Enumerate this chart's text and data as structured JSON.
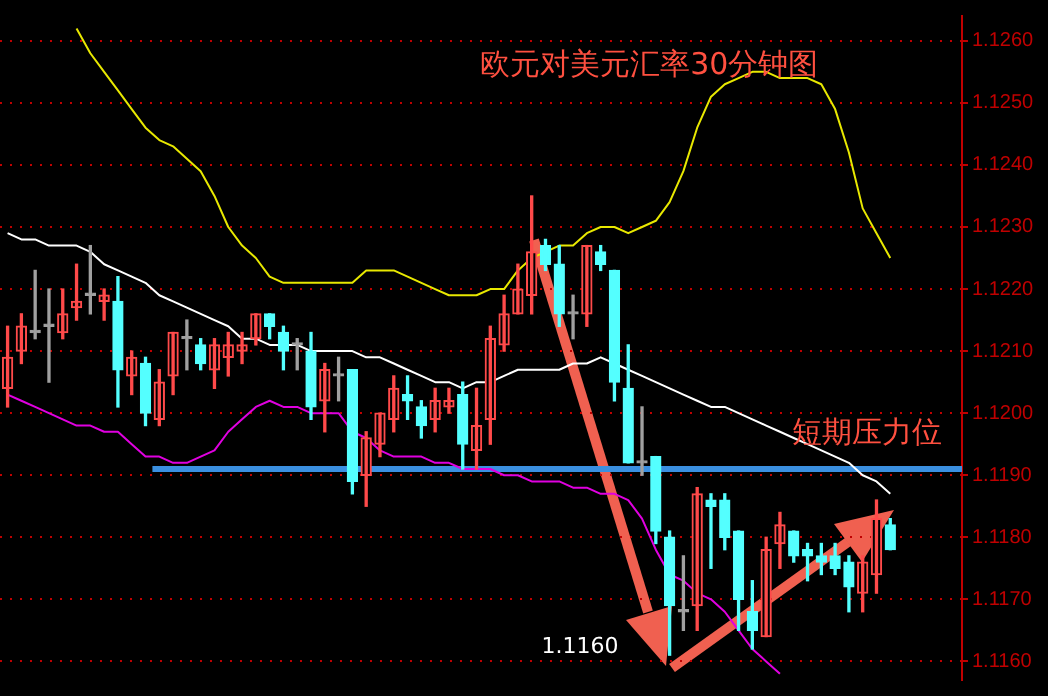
{
  "chart_data": {
    "type": "candlestick",
    "title": "欧元对美元汇率30分钟图",
    "categories": [
      null,
      null,
      null,
      null,
      null,
      null,
      null,
      null,
      null,
      null,
      null,
      null,
      null,
      null,
      null,
      null,
      null,
      null,
      null,
      null,
      null,
      null,
      null,
      null,
      null,
      null,
      null,
      null,
      null,
      null,
      null,
      null,
      null,
      null,
      null,
      null,
      null,
      null,
      null,
      null,
      null,
      null,
      null,
      null,
      null,
      null,
      null,
      null,
      null,
      null,
      null,
      null,
      null,
      null,
      null,
      null,
      null,
      null,
      null,
      null,
      null,
      null,
      null,
      null,
      null
    ],
    "ohlc": [
      [
        1.1204,
        1.1214,
        1.1201,
        1.1209
      ],
      [
        1.121,
        1.1216,
        1.1208,
        1.1214
      ],
      [
        1.1213,
        1.1223,
        1.1212,
        1.1213
      ],
      [
        1.1214,
        1.122,
        1.1205,
        1.1214
      ],
      [
        1.1213,
        1.122,
        1.1212,
        1.1216
      ],
      [
        1.1217,
        1.1224,
        1.1215,
        1.1218
      ],
      [
        1.1219,
        1.1227,
        1.1216,
        1.1219
      ],
      [
        1.1218,
        1.122,
        1.1215,
        1.1219
      ],
      [
        1.1218,
        1.1222,
        1.1201,
        1.1207
      ],
      [
        1.1206,
        1.121,
        1.1203,
        1.1209
      ],
      [
        1.1208,
        1.1209,
        1.1198,
        1.12
      ],
      [
        1.1199,
        1.1207,
        1.1198,
        1.1205
      ],
      [
        1.1206,
        1.1213,
        1.1203,
        1.1213
      ],
      [
        1.1212,
        1.1215,
        1.1207,
        1.1212
      ],
      [
        1.1211,
        1.1212,
        1.1207,
        1.1208
      ],
      [
        1.1207,
        1.1212,
        1.1204,
        1.1211
      ],
      [
        1.1209,
        1.1213,
        1.1206,
        1.1211
      ],
      [
        1.121,
        1.1213,
        1.1208,
        1.1211
      ],
      [
        1.1212,
        1.1216,
        1.1211,
        1.1216
      ],
      [
        1.1216,
        1.1216,
        1.1212,
        1.1214
      ],
      [
        1.1213,
        1.1214,
        1.1207,
        1.121
      ],
      [
        1.1211,
        1.1212,
        1.1207,
        1.1211
      ],
      [
        1.121,
        1.1213,
        1.1199,
        1.1201
      ],
      [
        1.1202,
        1.1208,
        1.1197,
        1.1207
      ],
      [
        1.1206,
        1.1209,
        1.1202,
        1.1206
      ],
      [
        1.1207,
        1.1207,
        1.1187,
        1.1189
      ],
      [
        1.119,
        1.1197,
        1.1185,
        1.1196
      ],
      [
        1.1195,
        1.12,
        1.1193,
        1.12
      ],
      [
        1.1199,
        1.1206,
        1.1197,
        1.1204
      ],
      [
        1.1203,
        1.1206,
        1.1199,
        1.1202
      ],
      [
        1.1201,
        1.1202,
        1.1196,
        1.1198
      ],
      [
        1.1199,
        1.1204,
        1.1197,
        1.1202
      ],
      [
        1.1201,
        1.1204,
        1.12,
        1.1202
      ],
      [
        1.1203,
        1.1205,
        1.1191,
        1.1195
      ],
      [
        1.1194,
        1.1204,
        1.1191,
        1.1198
      ],
      [
        1.1199,
        1.1214,
        1.1195,
        1.1212
      ],
      [
        1.1211,
        1.1219,
        1.121,
        1.1216
      ],
      [
        1.1216,
        1.1224,
        1.1216,
        1.122
      ],
      [
        1.1219,
        1.1235,
        1.1216,
        1.1226
      ],
      [
        1.1227,
        1.1228,
        1.1223,
        1.1224
      ],
      [
        1.1224,
        1.1227,
        1.1214,
        1.1216
      ],
      [
        1.1216,
        1.1219,
        1.1212,
        1.1216
      ],
      [
        1.1216,
        1.1227,
        1.1214,
        1.1227
      ],
      [
        1.1226,
        1.1227,
        1.1223,
        1.1224
      ],
      [
        1.1223,
        1.1223,
        1.1202,
        1.1205
      ],
      [
        1.1204,
        1.1211,
        1.1192,
        1.1192
      ],
      [
        1.1192,
        1.1201,
        1.119,
        1.1192
      ],
      [
        1.1193,
        1.1193,
        1.1179,
        1.1181
      ],
      [
        1.118,
        1.1181,
        1.1161,
        1.1169
      ],
      [
        1.1168,
        1.1177,
        1.1165,
        1.1168
      ],
      [
        1.1169,
        1.1188,
        1.1165,
        1.1187
      ],
      [
        1.1186,
        1.1187,
        1.1175,
        1.1185
      ],
      [
        1.1186,
        1.1187,
        1.1178,
        1.118
      ],
      [
        1.1181,
        1.1181,
        1.1165,
        1.117
      ],
      [
        1.1168,
        1.1173,
        1.1162,
        1.1165
      ],
      [
        1.1164,
        1.118,
        1.1164,
        1.1178
      ],
      [
        1.1179,
        1.1184,
        1.1175,
        1.1182
      ],
      [
        1.1181,
        1.1181,
        1.1176,
        1.1177
      ],
      [
        1.1178,
        1.1179,
        1.1173,
        1.1177
      ],
      [
        1.1177,
        1.1179,
        1.1174,
        1.1176
      ],
      [
        1.1177,
        1.1179,
        1.1174,
        1.1175
      ],
      [
        1.1176,
        1.1177,
        1.1168,
        1.1172
      ],
      [
        1.1171,
        1.1177,
        1.1168,
        1.1176
      ],
      [
        1.1174,
        1.1186,
        1.1171,
        1.1183
      ],
      [
        1.1182,
        1.1183,
        1.1178,
        1.1178
      ]
    ],
    "series": [
      {
        "type": "line",
        "color": "#e8e800",
        "values": [
          null,
          null,
          null,
          null,
          null,
          1.1262,
          1.1258,
          1.1255,
          1.1252,
          1.1249,
          1.1246,
          1.1244,
          1.1243,
          1.1241,
          1.1239,
          1.1235,
          1.123,
          1.1227,
          1.1225,
          1.1222,
          1.1221,
          1.1221,
          1.1221,
          1.1221,
          1.1221,
          1.1221,
          1.1223,
          1.1223,
          1.1223,
          1.1222,
          1.1221,
          1.122,
          1.1219,
          1.1219,
          1.1219,
          1.122,
          1.122,
          1.1223,
          1.1225,
          1.1226,
          1.1227,
          1.1227,
          1.1229,
          1.123,
          1.123,
          1.1229,
          1.123,
          1.1231,
          1.1234,
          1.1239,
          1.1246,
          1.1251,
          1.1253,
          1.1254,
          1.1255,
          1.1255,
          1.1254,
          1.1254,
          1.1254,
          1.1253,
          1.1249,
          1.1242,
          1.1233,
          1.1229,
          1.1225
        ]
      },
      {
        "type": "line",
        "color": "#ffffff",
        "values": [
          1.1229,
          1.1228,
          1.1228,
          1.1227,
          1.1227,
          1.1227,
          1.1226,
          1.1224,
          1.1223,
          1.1222,
          1.1221,
          1.1219,
          1.1218,
          1.1217,
          1.1216,
          1.1215,
          1.1214,
          1.1212,
          1.1212,
          1.1211,
          1.1211,
          1.1211,
          1.121,
          1.121,
          1.121,
          1.121,
          1.1209,
          1.1209,
          1.1208,
          1.1207,
          1.1206,
          1.1205,
          1.1205,
          1.1204,
          1.1205,
          1.1205,
          1.1206,
          1.1207,
          1.1207,
          1.1207,
          1.1207,
          1.1208,
          1.1208,
          1.1209,
          1.1208,
          1.1207,
          1.1206,
          1.1205,
          1.1204,
          1.1203,
          1.1202,
          1.1201,
          1.1201,
          1.12,
          1.1199,
          1.1198,
          1.1197,
          1.1196,
          1.1195,
          1.1194,
          1.1193,
          1.1192,
          1.119,
          1.1189,
          1.1187
        ]
      },
      {
        "type": "line",
        "color": "#e000e0",
        "values": [
          1.1203,
          1.1202,
          1.1201,
          1.12,
          1.1199,
          1.1198,
          1.1198,
          1.1197,
          1.1197,
          1.1195,
          1.1193,
          1.1193,
          1.1192,
          1.1192,
          1.1193,
          1.1194,
          1.1197,
          1.1199,
          1.1201,
          1.1202,
          1.1201,
          1.1201,
          1.12,
          1.12,
          1.12,
          1.1197,
          1.1196,
          1.1194,
          1.1193,
          1.1193,
          1.1193,
          1.1192,
          1.1192,
          1.1191,
          1.1191,
          1.1191,
          1.119,
          1.119,
          1.1189,
          1.1189,
          1.1189,
          1.1188,
          1.1188,
          1.1187,
          1.1187,
          1.1186,
          1.1183,
          1.1178,
          1.1174,
          1.1173,
          1.1171,
          1.117,
          1.1168,
          1.1165,
          1.1162,
          1.116,
          1.1158,
          null,
          null,
          null,
          null,
          null,
          null,
          null,
          null
        ]
      }
    ],
    "ylim": [
      1.1157,
      1.1264
    ],
    "yticks": [
      {
        "value": 1.116,
        "label": "1.1160"
      },
      {
        "value": 1.117,
        "label": "1.1170"
      },
      {
        "value": 1.118,
        "label": "1.1180"
      },
      {
        "value": 1.119,
        "label": "1.1190"
      },
      {
        "value": 1.12,
        "label": "1.1200"
      },
      {
        "value": 1.121,
        "label": "1.1210"
      },
      {
        "value": 1.122,
        "label": "1.1220"
      },
      {
        "value": 1.123,
        "label": "1.1230"
      },
      {
        "value": 1.124,
        "label": "1.1240"
      },
      {
        "value": 1.125,
        "label": "1.1250"
      },
      {
        "value": 1.126,
        "label": "1.1260"
      }
    ],
    "grid": "y",
    "legend": false,
    "marker": "none",
    "ref_lines": [
      {
        "axis": "y",
        "value": 1.1191,
        "label": "短期压力位",
        "color": "#3a8fe0"
      }
    ],
    "annotations": [
      "1.1160"
    ]
  }
}
